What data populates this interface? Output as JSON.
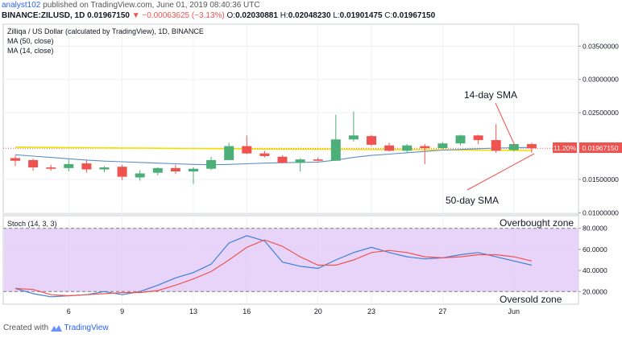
{
  "header": {
    "author": "analyst102",
    "published_text": " published on TradingView.com, June 01, 2019 08:40:36 UTC",
    "symbol": "BINANCE:ZILUSD, 1D",
    "last": "0.01967150",
    "change": "▼ −0.00063625 (−3.13%)",
    "ohlc": {
      "o_label": "O:",
      "o": "0.02030881",
      "h_label": "H:",
      "h": "0.02048230",
      "l_label": "L:",
      "l": "0.01901475",
      "c_label": "C:",
      "c": "0.01967150"
    }
  },
  "legend": {
    "title": "Zilliqa / US Dollar (calculated by TradingView), 1D, BINANCE",
    "ma50": "MA (50, close)",
    "ma14": "MA (14, close)"
  },
  "annotations": {
    "sma14": "14-day SMA",
    "sma50": "50-day SMA",
    "overbought": "Overbought zone",
    "oversold": "Oversold zone"
  },
  "stoch_label": "Stoch (14, 3, 3)",
  "footer": {
    "created_with": "Created with",
    "brand": "TradingView"
  },
  "colors": {
    "up": "#4caf78",
    "down": "#ef5350",
    "ma50": "#f0e000",
    "ma14": "#5b8fc8",
    "stoch_k": "#3f7fd8",
    "stoch_d": "#ef5350",
    "stoch_band": "#e3ccf7"
  },
  "chart_data": [
    {
      "type": "candlestick",
      "title": "Zilliqa / US Dollar (calculated by TradingView), 1D, BINANCE",
      "x_ticks": [
        "6",
        "9",
        "13",
        "16",
        "20",
        "23",
        "27",
        "Jun"
      ],
      "x_tick_index": [
        3,
        6,
        10,
        13,
        17,
        20,
        24,
        28
      ],
      "y_ticks": [
        "0.01000000",
        "0.01500000",
        "0.02500000",
        "0.03000000",
        "0.03500000"
      ],
      "y_tick_values": [
        0.01,
        0.015,
        0.025,
        0.03,
        0.035
      ],
      "ylim": [
        0.0098,
        0.0383
      ],
      "price_badges": {
        "percent": "11.20%",
        "price": "0.01967150",
        "price_value": 0.0196715
      },
      "candles": [
        {
          "o": 0.0182,
          "h": 0.0186,
          "l": 0.017,
          "c": 0.0178
        },
        {
          "o": 0.0179,
          "h": 0.0181,
          "l": 0.0163,
          "c": 0.0168
        },
        {
          "o": 0.0168,
          "h": 0.0172,
          "l": 0.0163,
          "c": 0.0166
        },
        {
          "o": 0.0167,
          "h": 0.018,
          "l": 0.0162,
          "c": 0.0173
        },
        {
          "o": 0.0174,
          "h": 0.0179,
          "l": 0.016,
          "c": 0.0165
        },
        {
          "o": 0.0165,
          "h": 0.017,
          "l": 0.0161,
          "c": 0.0168
        },
        {
          "o": 0.0169,
          "h": 0.0172,
          "l": 0.0149,
          "c": 0.0154
        },
        {
          "o": 0.0153,
          "h": 0.0164,
          "l": 0.0148,
          "c": 0.0159
        },
        {
          "o": 0.016,
          "h": 0.0168,
          "l": 0.0156,
          "c": 0.0167
        },
        {
          "o": 0.0167,
          "h": 0.0172,
          "l": 0.0158,
          "c": 0.0162
        },
        {
          "o": 0.0162,
          "h": 0.0168,
          "l": 0.0143,
          "c": 0.0166
        },
        {
          "o": 0.0166,
          "h": 0.0184,
          "l": 0.0164,
          "c": 0.0179
        },
        {
          "o": 0.0179,
          "h": 0.0205,
          "l": 0.0179,
          "c": 0.02
        },
        {
          "o": 0.02,
          "h": 0.0216,
          "l": 0.0188,
          "c": 0.0189
        },
        {
          "o": 0.0189,
          "h": 0.0193,
          "l": 0.0183,
          "c": 0.0185
        },
        {
          "o": 0.0184,
          "h": 0.0186,
          "l": 0.0174,
          "c": 0.0175
        },
        {
          "o": 0.0175,
          "h": 0.0182,
          "l": 0.0162,
          "c": 0.018
        },
        {
          "o": 0.018,
          "h": 0.0183,
          "l": 0.0177,
          "c": 0.0178
        },
        {
          "o": 0.0178,
          "h": 0.0247,
          "l": 0.0178,
          "c": 0.021
        },
        {
          "o": 0.021,
          "h": 0.0252,
          "l": 0.0207,
          "c": 0.0216
        },
        {
          "o": 0.0215,
          "h": 0.0217,
          "l": 0.02,
          "c": 0.0202
        },
        {
          "o": 0.0201,
          "h": 0.0205,
          "l": 0.0192,
          "c": 0.0193
        },
        {
          "o": 0.0193,
          "h": 0.0203,
          "l": 0.019,
          "c": 0.0201
        },
        {
          "o": 0.02,
          "h": 0.0203,
          "l": 0.0173,
          "c": 0.0197
        },
        {
          "o": 0.0197,
          "h": 0.0206,
          "l": 0.0196,
          "c": 0.0204
        },
        {
          "o": 0.0204,
          "h": 0.0217,
          "l": 0.0201,
          "c": 0.0216
        },
        {
          "o": 0.0216,
          "h": 0.0217,
          "l": 0.0203,
          "c": 0.0209
        },
        {
          "o": 0.0209,
          "h": 0.0233,
          "l": 0.019,
          "c": 0.0193
        },
        {
          "o": 0.0194,
          "h": 0.0204,
          "l": 0.0192,
          "c": 0.0203
        },
        {
          "o": 0.0203,
          "h": 0.0205,
          "l": 0.019,
          "c": 0.01967
        }
      ],
      "series": [
        {
          "name": "MA (50, close)",
          "values": [
            0.01985,
            0.01982,
            0.0198,
            0.01978,
            0.01976,
            0.01974,
            0.01972,
            0.0197,
            0.01968,
            0.01966,
            0.01964,
            0.01962,
            0.0196,
            0.01958,
            0.01956,
            0.01955,
            0.01954,
            0.01953,
            0.01952,
            0.01951,
            0.0195,
            0.01949,
            0.01948,
            0.01946,
            0.01944,
            0.01942,
            0.0194,
            0.01938,
            0.01936,
            0.01934
          ]
        },
        {
          "name": "MA (14, close)",
          "values": [
            0.0187,
            0.0185,
            0.0183,
            0.0181,
            0.0179,
            0.01775,
            0.01765,
            0.01755,
            0.01745,
            0.01735,
            0.01725,
            0.0172,
            0.01725,
            0.01735,
            0.01745,
            0.0175,
            0.01755,
            0.0176,
            0.0179,
            0.0183,
            0.0186,
            0.0188,
            0.019,
            0.0192,
            0.0194,
            0.0195,
            0.0196,
            0.0197,
            0.01975,
            0.0198
          ]
        }
      ]
    },
    {
      "type": "line",
      "title": "Stoch (14, 3, 3)",
      "y_ticks": [
        "20.0000",
        "40.0000",
        "60.0000",
        "80.0000"
      ],
      "y_tick_values": [
        20,
        40,
        60,
        80
      ],
      "ylim": [
        8,
        92
      ],
      "band": [
        20,
        80
      ],
      "series": [
        {
          "name": "K",
          "values": [
            23,
            18,
            15,
            16,
            17,
            20,
            17,
            20,
            26,
            33,
            38,
            46,
            66,
            73,
            68,
            48,
            44,
            42,
            50,
            57,
            62,
            57,
            53,
            51,
            52,
            55,
            57,
            53,
            49,
            45
          ]
        },
        {
          "name": "D",
          "values": [
            23,
            22,
            17,
            16,
            17,
            18,
            19,
            19,
            21,
            26,
            32,
            39,
            50,
            62,
            69,
            63,
            53,
            45,
            45,
            50,
            57,
            59,
            57,
            53,
            52,
            53,
            55,
            55,
            53,
            49
          ]
        }
      ]
    }
  ]
}
